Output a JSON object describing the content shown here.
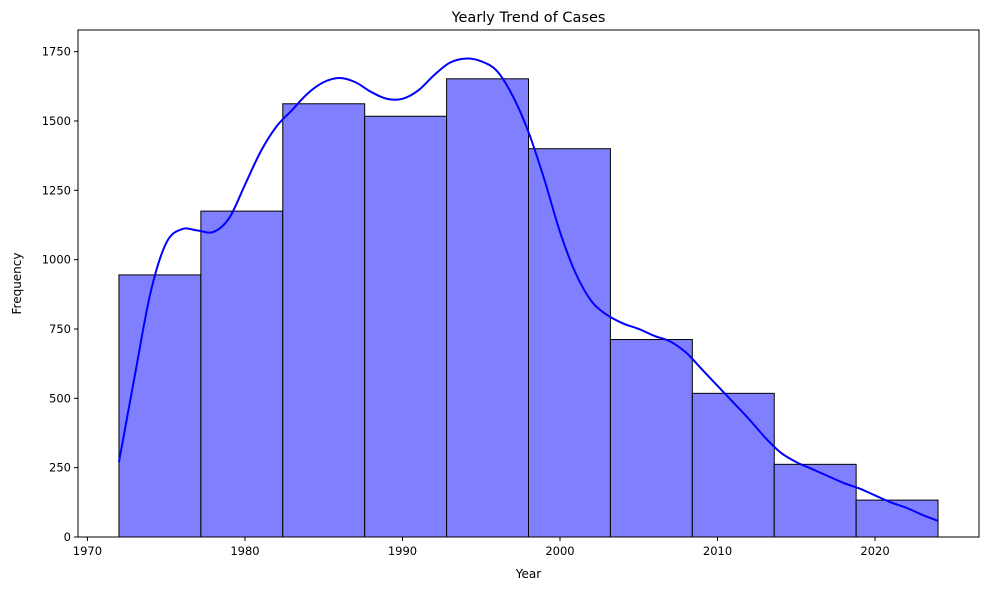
{
  "chart_data": {
    "type": "histogram",
    "title": "Yearly Trend of Cases",
    "xlabel": "Year",
    "ylabel": "Frequency",
    "xlim": [
      1969.4,
      2026.6
    ],
    "ylim": [
      0,
      1828
    ],
    "xticks": [
      1970,
      1980,
      1990,
      2000,
      2010,
      2020
    ],
    "yticks": [
      0,
      250,
      500,
      750,
      1000,
      1250,
      1500,
      1750
    ],
    "grid": false,
    "bins": [
      {
        "x0": 1972.0,
        "x1": 1977.2,
        "value": 945
      },
      {
        "x0": 1977.2,
        "x1": 1982.4,
        "value": 1175
      },
      {
        "x0": 1982.4,
        "x1": 1987.6,
        "value": 1562
      },
      {
        "x0": 1987.6,
        "x1": 1992.8,
        "value": 1517
      },
      {
        "x0": 1992.8,
        "x1": 1998.0,
        "value": 1652
      },
      {
        "x0": 1998.0,
        "x1": 2003.2,
        "value": 1400
      },
      {
        "x0": 2003.2,
        "x1": 2008.4,
        "value": 712
      },
      {
        "x0": 2008.4,
        "x1": 2013.6,
        "value": 518
      },
      {
        "x0": 2013.6,
        "x1": 2018.8,
        "value": 262
      },
      {
        "x0": 2018.8,
        "x1": 2024.0,
        "value": 133
      }
    ],
    "kde": {
      "x": [
        1972.0,
        1973.0,
        1974.0,
        1975.0,
        1976.0,
        1977.0,
        1978.0,
        1979.0,
        1980.0,
        1981.0,
        1982.0,
        1983.0,
        1984.0,
        1985.0,
        1986.0,
        1987.0,
        1988.0,
        1989.0,
        1990.0,
        1991.0,
        1992.0,
        1993.0,
        1994.0,
        1995.0,
        1996.0,
        1997.0,
        1998.0,
        1999.0,
        2000.0,
        2001.0,
        2002.0,
        2003.0,
        2004.0,
        2005.0,
        2006.0,
        2007.0,
        2008.0,
        2009.0,
        2010.0,
        2011.0,
        2012.0,
        2013.0,
        2014.0,
        2015.0,
        2016.0,
        2017.0,
        2018.0,
        2019.0,
        2020.0,
        2021.0,
        2022.0,
        2023.0,
        2024.0
      ],
      "y": [
        270,
        580,
        880,
        1060,
        1110,
        1105,
        1100,
        1150,
        1270,
        1390,
        1480,
        1540,
        1600,
        1640,
        1655,
        1640,
        1605,
        1580,
        1580,
        1610,
        1665,
        1710,
        1725,
        1715,
        1680,
        1590,
        1460,
        1290,
        1100,
        950,
        850,
        800,
        770,
        750,
        725,
        705,
        665,
        605,
        545,
        485,
        425,
        360,
        305,
        270,
        245,
        220,
        195,
        175,
        150,
        125,
        105,
        80,
        58
      ]
    },
    "colors": {
      "bar_fill": "#8080ff",
      "bar_edge": "#000000",
      "kde_line": "#0000ff"
    }
  }
}
